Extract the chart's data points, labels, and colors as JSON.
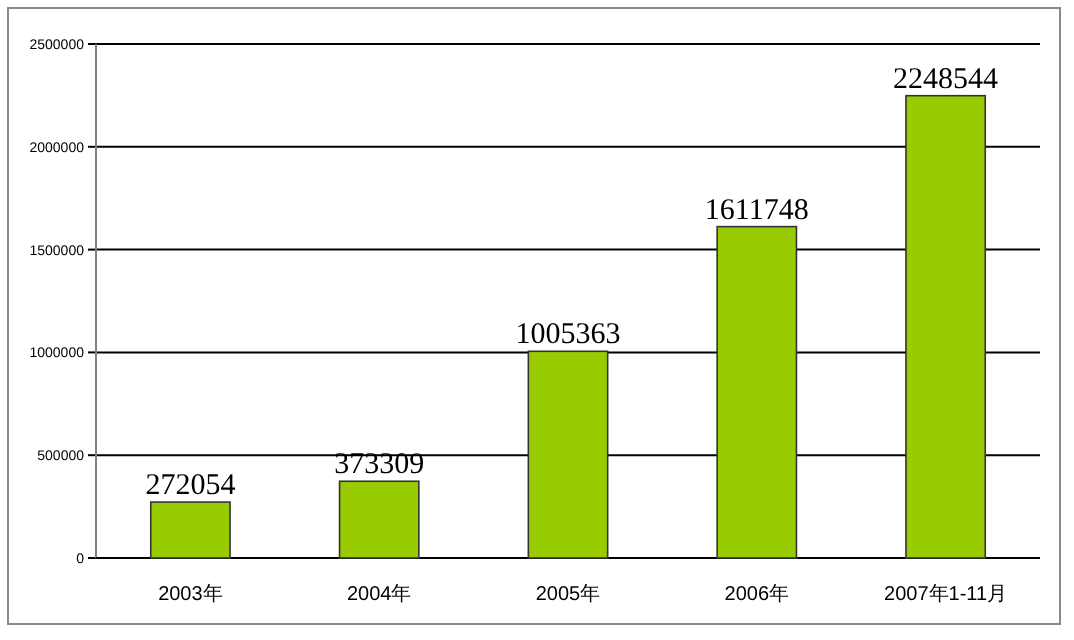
{
  "chart_data": {
    "type": "bar",
    "categories": [
      "2003年",
      "2004年",
      "2005年",
      "2006年",
      "2007年1-11月"
    ],
    "values": [
      272054,
      373309,
      1005363,
      1611748,
      2248544
    ],
    "color": "#99cc00",
    "ylim": [
      0,
      2500000
    ],
    "yticks": [
      0,
      500000,
      1000000,
      1500000,
      2000000,
      2500000
    ],
    "grid": "y",
    "data_labels": true
  }
}
